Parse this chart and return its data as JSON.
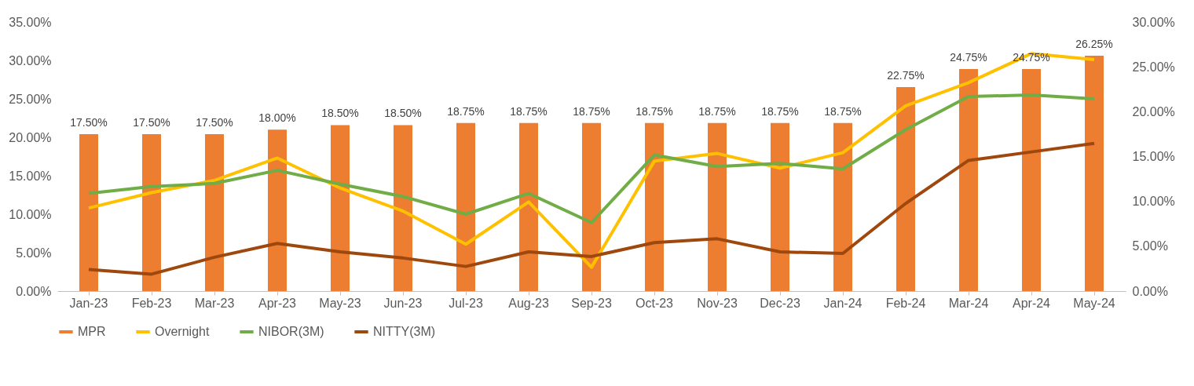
{
  "chart_data": {
    "type": "bar",
    "categories": [
      "Jan-23",
      "Feb-23",
      "Mar-23",
      "Apr-23",
      "May-23",
      "Jun-23",
      "Jul-23",
      "Aug-23",
      "Sep-23",
      "Oct-23",
      "Nov-23",
      "Dec-23",
      "Jan-24",
      "Feb-24",
      "Mar-24",
      "Apr-24",
      "May-24"
    ],
    "series": [
      {
        "name": "MPR",
        "axis": "y2",
        "color": "#ed7d31",
        "values": [
          17.5,
          17.5,
          17.5,
          18,
          18.5,
          18.5,
          18.75,
          18.75,
          18.75,
          18.75,
          18.75,
          18.75,
          18.75,
          22.75,
          24.75,
          24.75,
          26.25
        ],
        "value_labels": [
          "17.50%",
          "17.50%",
          "17.50%",
          "18.00%",
          "18.50%",
          "18.50%",
          "18.75%",
          "18.75%",
          "18.75%",
          "18.75%",
          "18.75%",
          "18.75%",
          "18.75%",
          "22.75%",
          "24.75%",
          "24.75%",
          "26.25%"
        ]
      },
      {
        "name": "Overnight",
        "type": "line",
        "color": "#ffc000",
        "values": [
          10.8,
          12.8,
          14.4,
          17.3,
          13.4,
          10.4,
          6.1,
          11.6,
          3.1,
          16.9,
          17.9,
          16.0,
          18.0,
          24.1,
          27.1,
          30.9,
          30.1
        ]
      },
      {
        "name": "NIBOR(3M)",
        "type": "line",
        "color": "#70ad47",
        "values": [
          12.7,
          13.6,
          14.0,
          15.7,
          13.9,
          12.3,
          10.0,
          12.7,
          8.9,
          17.7,
          16.2,
          16.6,
          15.9,
          21.0,
          25.3,
          25.5,
          25.0
        ]
      },
      {
        "name": "NITTY(3M)",
        "type": "line",
        "color": "#9e480e",
        "values": [
          2.8,
          2.2,
          4.4,
          6.2,
          5.1,
          4.3,
          3.2,
          5.1,
          4.5,
          6.3,
          6.8,
          5.1,
          4.9,
          11.4,
          17.0,
          18.1,
          19.2
        ]
      }
    ],
    "ylim": [
      0,
      35
    ],
    "yticks": [
      {
        "value": 0,
        "label": "0.00%"
      },
      {
        "value": 5,
        "label": "5.00%"
      },
      {
        "value": 10,
        "label": "10.00%"
      },
      {
        "value": 15,
        "label": "15.00%"
      },
      {
        "value": 20,
        "label": "20.00%"
      },
      {
        "value": 25,
        "label": "25.00%"
      },
      {
        "value": 30,
        "label": "30.00%"
      },
      {
        "value": 35,
        "label": "35.00%"
      }
    ],
    "y2lim": [
      0,
      30
    ],
    "y2ticks": [
      {
        "value": 0,
        "label": "0.00%"
      },
      {
        "value": 5,
        "label": "5.00%"
      },
      {
        "value": 10,
        "label": "10.00%"
      },
      {
        "value": 15,
        "label": "15.00%"
      },
      {
        "value": 20,
        "label": "20.00%"
      },
      {
        "value": 25,
        "label": "25.00%"
      },
      {
        "value": 30,
        "label": "30.00%"
      }
    ],
    "grid": false,
    "legend": "bottom",
    "line_style": "solid",
    "marker": "none"
  }
}
